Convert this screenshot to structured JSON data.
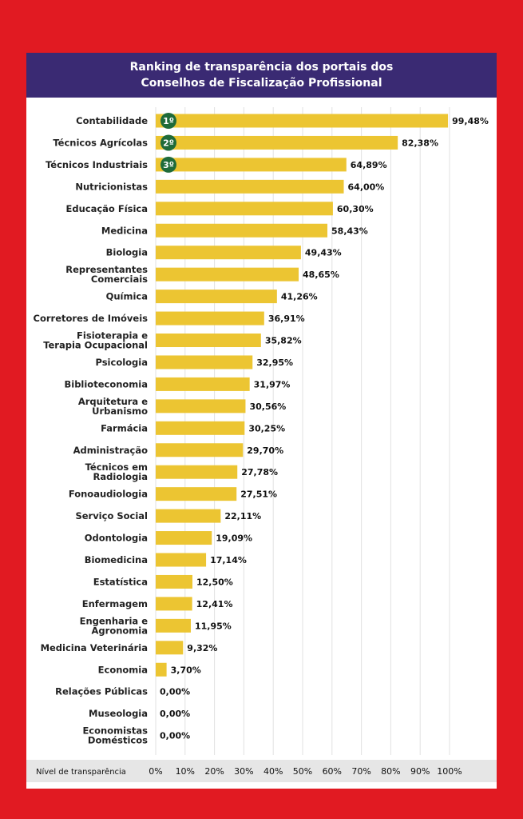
{
  "chart_data": {
    "type": "bar",
    "orientation": "horizontal",
    "title_lines": [
      "Ranking de transparência dos portais dos",
      "Conselhos de Fiscalização Profissional"
    ],
    "xlabel": "Nível de transparência",
    "xlim": [
      0,
      100
    ],
    "xticks": [
      "0%",
      "10%",
      "20%",
      "30%",
      "40%",
      "50%",
      "60%",
      "70%",
      "80%",
      "90%",
      "100%"
    ],
    "grid": true,
    "bar_color": "#ecc532",
    "categories": [
      [
        "Contabilidade"
      ],
      [
        "Técnicos Agrícolas"
      ],
      [
        "Técnicos Industriais"
      ],
      [
        "Nutricionistas"
      ],
      [
        "Educação Física"
      ],
      [
        "Medicina"
      ],
      [
        "Biologia"
      ],
      [
        "Representantes",
        "Comerciais"
      ],
      [
        "Química"
      ],
      [
        "Corretores de Imóveis"
      ],
      [
        "Fisioterapia e",
        "Terapia Ocupacional"
      ],
      [
        "Psicologia"
      ],
      [
        "Biblioteconomia"
      ],
      [
        "Arquitetura e",
        "Urbanismo"
      ],
      [
        "Farmácia"
      ],
      [
        "Administração"
      ],
      [
        "Técnicos em",
        "Radiologia"
      ],
      [
        "Fonoaudiologia"
      ],
      [
        "Serviço Social"
      ],
      [
        "Odontologia"
      ],
      [
        "Biomedicina"
      ],
      [
        "Estatística"
      ],
      [
        "Enfermagem"
      ],
      [
        "Engenharia e",
        "Agronomia"
      ],
      [
        "Medicina Veterinária"
      ],
      [
        "Economia"
      ],
      [
        "Relações Públicas"
      ],
      [
        "Museologia"
      ],
      [
        "Economistas",
        "Domésticos"
      ]
    ],
    "values": [
      99.48,
      82.38,
      64.89,
      64.0,
      60.3,
      58.43,
      49.43,
      48.65,
      41.26,
      36.91,
      35.82,
      32.95,
      31.97,
      30.56,
      30.25,
      29.7,
      27.78,
      27.51,
      22.11,
      19.09,
      17.14,
      12.5,
      12.41,
      11.95,
      9.32,
      3.7,
      0.0,
      0.0,
      0.0
    ],
    "value_labels": [
      "99,48%",
      "82,38%",
      "64,89%",
      "64,00%",
      "60,30%",
      "58,43%",
      "49,43%",
      "48,65%",
      "41,26%",
      "36,91%",
      "35,82%",
      "32,95%",
      "31,97%",
      "30,56%",
      "30,25%",
      "29,70%",
      "27,78%",
      "27,51%",
      "22,11%",
      "19,09%",
      "17,14%",
      "12,50%",
      "12,41%",
      "11,95%",
      "9,32%",
      "3,70%",
      "0,00%",
      "0,00%",
      "0,00%"
    ],
    "rank_badges": [
      "1º",
      "2º",
      "3º"
    ],
    "badge_color": "#1f6b3a"
  },
  "colors": {
    "background": "#e11a22",
    "header": "#3a2a73",
    "axis_band": "#e6e6e6"
  }
}
